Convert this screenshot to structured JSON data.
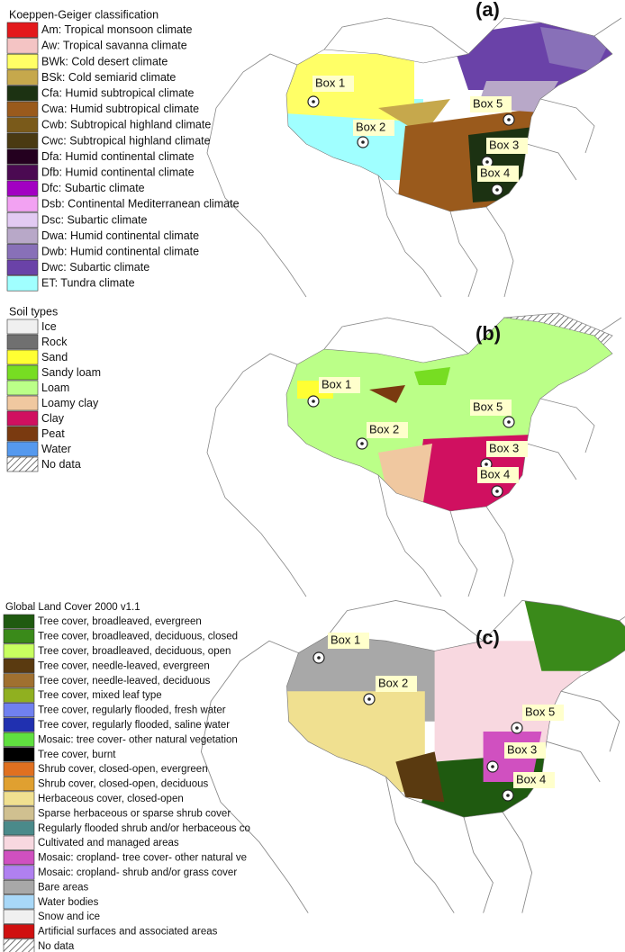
{
  "panels": [
    {
      "label": "(a)",
      "legend": {
        "title": "Koeppen-Geiger classification",
        "items": [
          {
            "label": "Am: Tropical monsoon climate",
            "color": "#e3191c"
          },
          {
            "label": "Aw: Tropical savanna climate",
            "color": "#f4c4c4"
          },
          {
            "label": "BWk: Cold desert climate",
            "color": "#ffff66"
          },
          {
            "label": "BSk: Cold semiarid climate",
            "color": "#c6a84c"
          },
          {
            "label": "Cfa: Humid subtropical climate",
            "color": "#1c3212"
          },
          {
            "label": "Cwa: Humid subtropical climate",
            "color": "#9a5a1c"
          },
          {
            "label": "Cwb: Subtropical highland climate",
            "color": "#7a5a1a"
          },
          {
            "label": "Cwc: Subtropical highland climate",
            "color": "#4a3a12"
          },
          {
            "label": "Dfa: Humid continental climate",
            "color": "#24001f"
          },
          {
            "label": "Dfb: Humid continental climate",
            "color": "#4b0a52"
          },
          {
            "label": "Dfc: Subartic climate",
            "color": "#a200c2"
          },
          {
            "label": "Dsb: Continental Mediterranean climate",
            "color": "#f2a2f2"
          },
          {
            "label": "Dsc: Subartic climate",
            "color": "#e2caf2"
          },
          {
            "label": "Dwa: Humid continental climate",
            "color": "#b8a8c8"
          },
          {
            "label": "Dwb: Humid continental climate",
            "color": "#8870b8"
          },
          {
            "label": "Dwc: Subartic climate",
            "color": "#6a42a8"
          },
          {
            "label": "ET: Tundra climate",
            "color": "#a0ffff"
          }
        ]
      },
      "boxes": [
        "Box 1",
        "Box 2",
        "Box 3",
        "Box 4",
        "Box 5"
      ]
    },
    {
      "label": "(b)",
      "legend": {
        "title": "Soil types",
        "items": [
          {
            "label": "Ice",
            "color": "#f0f0f0"
          },
          {
            "label": "Rock",
            "color": "#707070"
          },
          {
            "label": "Sand",
            "color": "#ffff33"
          },
          {
            "label": "Sandy loam",
            "color": "#77dd22"
          },
          {
            "label": "Loam",
            "color": "#bbff88"
          },
          {
            "label": "Loamy clay",
            "color": "#f0c8a0"
          },
          {
            "label": "Clay",
            "color": "#d01060"
          },
          {
            "label": "Peat",
            "color": "#7a3a10"
          },
          {
            "label": "Water",
            "color": "#5599ee"
          },
          {
            "label": "No data"
          }
        ]
      },
      "boxes": [
        "Box 1",
        "Box 2",
        "Box 3",
        "Box 4",
        "Box 5"
      ]
    },
    {
      "label": "(c)",
      "legend": {
        "title": "Global Land Cover 2000 v1.1",
        "items": [
          {
            "label": "Tree cover, broadleaved, evergreen",
            "color": "#1f5a10"
          },
          {
            "label": "Tree cover, broadleaved, deciduous, closed",
            "color": "#3a8a1a"
          },
          {
            "label": "Tree cover, broadleaved, deciduous, open",
            "color": "#c8ff60"
          },
          {
            "label": "Tree cover, needle-leaved, evergreen",
            "color": "#5a3a10"
          },
          {
            "label": "Tree cover, needle-leaved, deciduous",
            "color": "#a07030"
          },
          {
            "label": "Tree cover, mixed leaf type",
            "color": "#90b020"
          },
          {
            "label": "Tree cover, regularly flooded, fresh water",
            "color": "#7080f0"
          },
          {
            "label": "Tree cover, regularly flooded, saline water",
            "color": "#2030b0"
          },
          {
            "label": "Mosaic:  tree cover- other natural vegetation",
            "color": "#60e040"
          },
          {
            "label": "Tree cover, burnt",
            "color": "#000000"
          },
          {
            "label": "Shrub cover, closed-open, evergreen",
            "color": "#e07020"
          },
          {
            "label": "Shrub cover, closed-open, deciduous",
            "color": "#e0a030"
          },
          {
            "label": "Herbaceous cover, closed-open",
            "color": "#f0e090"
          },
          {
            "label": "Sparse herbaceous or sparse shrub cover",
            "color": "#d0c090"
          },
          {
            "label": "Regularly flooded shrub and/or herbaceous co",
            "color": "#4a8a8a"
          },
          {
            "label": "Cultivated and managed areas",
            "color": "#f8d8e0"
          },
          {
            "label": "Mosaic:  cropland- tree cover- other natural ve",
            "color": "#d050c0"
          },
          {
            "label": "Mosaic:  cropland- shrub and/or grass cover",
            "color": "#b080f0"
          },
          {
            "label": "Bare areas",
            "color": "#a8a8a8"
          },
          {
            "label": "Water bodies",
            "color": "#a8d8f8"
          },
          {
            "label": "Snow and ice",
            "color": "#f0f0f0"
          },
          {
            "label": "Artificial surfaces and associated areas",
            "color": "#d01010"
          },
          {
            "label": "No data"
          }
        ]
      },
      "boxes": [
        "Box 1",
        "Box 2",
        "Box 3",
        "Box 4",
        "Box 5"
      ]
    }
  ]
}
